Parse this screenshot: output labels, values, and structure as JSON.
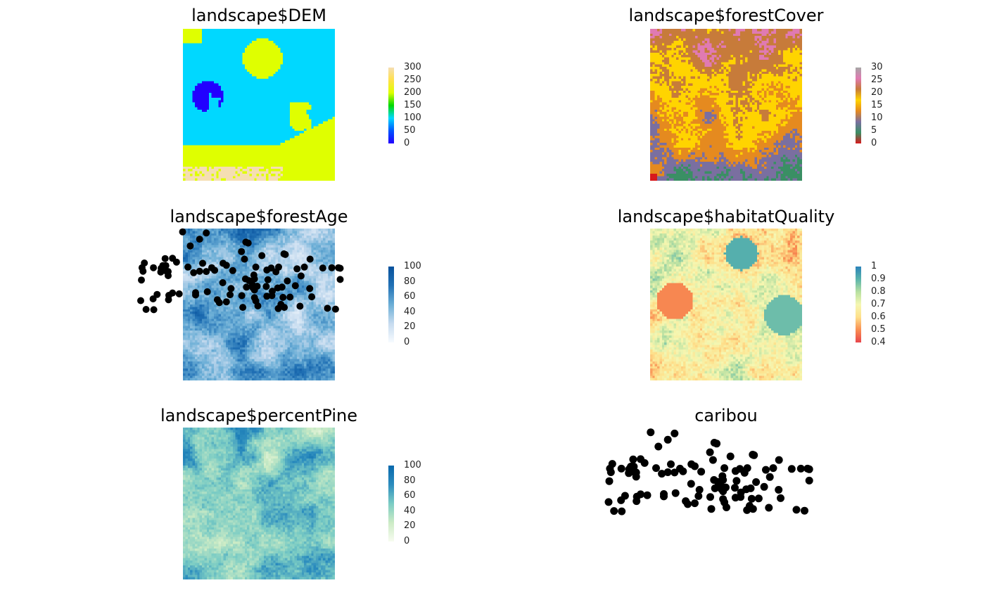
{
  "chart_data": [
    {
      "id": "dem",
      "type": "heatmap",
      "title": "landscape$DEM",
      "palette": "rainbow-terrain",
      "stops": [
        "#2200ff",
        "#0055ff",
        "#00d8ff",
        "#00d800",
        "#dfff00",
        "#ffe14a",
        "#f5deb3"
      ],
      "legend_ticks": [
        "300",
        "250",
        "200",
        "150",
        "100",
        "50",
        "0"
      ],
      "range": [
        0,
        300
      ]
    },
    {
      "id": "forestCover",
      "type": "heatmap",
      "title": "landscape$forestCover",
      "palette": "forest-cover",
      "stops": [
        "#d7191c",
        "#3a8f64",
        "#7a6fa0",
        "#e58a1f",
        "#ffd400",
        "#c77b3a",
        "#e07ab2",
        "#a6a6a6"
      ],
      "legend_ticks": [
        "30",
        "25",
        "20",
        "15",
        "10",
        "5",
        "0"
      ],
      "range": [
        0,
        30
      ]
    },
    {
      "id": "forestAge",
      "type": "heatmap",
      "title": "landscape$forestAge",
      "palette": "blues",
      "stops": [
        "#f7fbff",
        "#c6dbef",
        "#6baed6",
        "#2171b5",
        "#08519c"
      ],
      "legend_ticks": [
        "100",
        "80",
        "60",
        "40",
        "20",
        "0"
      ],
      "range": [
        0,
        100
      ],
      "overlay": "caribou points"
    },
    {
      "id": "habitatQuality",
      "type": "heatmap",
      "title": "landscape$habitatQuality",
      "palette": "spectral",
      "stops": [
        "#e8454c",
        "#f98e52",
        "#fee08b",
        "#f5f7b2",
        "#b8e0a1",
        "#5ab4ac",
        "#2b83ba"
      ],
      "legend_ticks": [
        "1",
        "0.9",
        "0.8",
        "0.7",
        "0.6",
        "0.5",
        "0.4"
      ],
      "range": [
        0.4,
        1
      ]
    },
    {
      "id": "percentPine",
      "type": "heatmap",
      "title": "landscape$percentPine",
      "palette": "gnbu",
      "stops": [
        "#f7fcf0",
        "#ccebc5",
        "#7bccc4",
        "#2b8cbe",
        "#0868ac"
      ],
      "legend_ticks": [
        "100",
        "80",
        "60",
        "40",
        "20",
        "0"
      ],
      "range": [
        0,
        100
      ]
    },
    {
      "id": "caribou",
      "type": "scatter",
      "title": "caribou",
      "point_color": "#000000",
      "x_range": [
        -10,
        60
      ],
      "y_range": [
        0,
        50
      ],
      "points": [
        [
          2.5,
          49.6
        ],
        [
          9.6,
          49.2
        ],
        [
          7.6,
          47.1
        ],
        [
          21.4,
          46.1
        ],
        [
          22.1,
          45.8
        ],
        [
          4.8,
          44.8
        ],
        [
          20.1,
          42.9
        ],
        [
          32.8,
          42.1
        ],
        [
          33.2,
          41.9
        ],
        [
          26.2,
          41.5
        ],
        [
          -0.5,
          40.6
        ],
        [
          -2.7,
          40.5
        ],
        [
          21.0,
          40.3
        ],
        [
          40.6,
          40.3
        ],
        [
          0.7,
          39.3
        ],
        [
          -8.9,
          39.0
        ],
        [
          8.5,
          38.9
        ],
        [
          14.6,
          38.9
        ],
        [
          15.6,
          38.2
        ],
        [
          -3.4,
          38.1
        ],
        [
          -2.5,
          38.1
        ],
        [
          24.4,
          37.6
        ],
        [
          -9.6,
          37.4
        ],
        [
          -6.2,
          37.4
        ],
        [
          -3.9,
          37.2
        ],
        [
          4.1,
          37.6
        ],
        [
          11.2,
          37.4
        ],
        [
          29.0,
          37.3
        ],
        [
          31.2,
          37.6
        ],
        [
          38.9,
          37.6
        ],
        [
          44.4,
          37.3
        ],
        [
          47.1,
          37.4
        ],
        [
          49.1,
          37.4
        ],
        [
          49.6,
          37.2
        ],
        [
          36.7,
          37.0
        ],
        [
          27.7,
          36.6
        ],
        [
          12.1,
          36.5
        ],
        [
          17.5,
          36.4
        ],
        [
          -9.3,
          36.2
        ],
        [
          -2.2,
          36.1
        ],
        [
          -1.8,
          36.1
        ],
        [
          7.6,
          36.2
        ],
        [
          9.6,
          36.1
        ],
        [
          30.4,
          36.0
        ],
        [
          -4.0,
          35.9
        ],
        [
          5.8,
          35.7
        ],
        [
          -1.8,
          34.7
        ],
        [
          23.8,
          34.9
        ],
        [
          37.9,
          34.6
        ],
        [
          21.3,
          33.6
        ],
        [
          24.0,
          33.6
        ],
        [
          -9.8,
          33.2
        ],
        [
          49.6,
          33.4
        ],
        [
          28.0,
          33.3
        ],
        [
          22.4,
          33.0
        ],
        [
          33.8,
          32.9
        ],
        [
          14.5,
          32.3
        ],
        [
          23.4,
          31.5
        ],
        [
          36.2,
          31.3
        ],
        [
          27.5,
          31.0
        ],
        [
          17.0,
          30.3
        ],
        [
          21.6,
          30.8
        ],
        [
          23.5,
          30.6
        ],
        [
          30.9,
          30.5
        ],
        [
          24.8,
          31.1
        ],
        [
          32.2,
          30.8
        ],
        [
          40.5,
          30.3
        ],
        [
          24.0,
          29.8
        ],
        [
          29.3,
          29.4
        ],
        [
          9.9,
          29.2
        ],
        [
          6.4,
          28.9
        ],
        [
          -5.1,
          28.3
        ],
        [
          -1.6,
          28.0
        ],
        [
          -0.5,
          28.8
        ],
        [
          1.5,
          28.5
        ],
        [
          6.4,
          28.1
        ],
        [
          16.7,
          28.2
        ],
        [
          20.2,
          27.9
        ],
        [
          34.6,
          27.4
        ],
        [
          27.7,
          27.7
        ],
        [
          32.5,
          27.3
        ],
        [
          29.2,
          27.9
        ],
        [
          41.1,
          27.5
        ],
        [
          24.0,
          27.2
        ],
        [
          -6.3,
          26.8
        ],
        [
          12.9,
          26.5
        ],
        [
          24.4,
          26.1
        ],
        [
          -10.0,
          26.2
        ],
        [
          -1.7,
          26.5
        ],
        [
          15.6,
          25.8
        ],
        [
          31.9,
          24.9
        ],
        [
          25.0,
          24.4
        ],
        [
          13.5,
          25.5
        ],
        [
          37.6,
          24.3
        ],
        [
          -8.4,
          23.2
        ],
        [
          -6.1,
          23.1
        ],
        [
          20.5,
          23.9
        ],
        [
          32.9,
          23.9
        ],
        [
          45.8,
          23.6
        ],
        [
          48.2,
          23.3
        ],
        [
          31.1,
          23.5
        ]
      ]
    }
  ]
}
